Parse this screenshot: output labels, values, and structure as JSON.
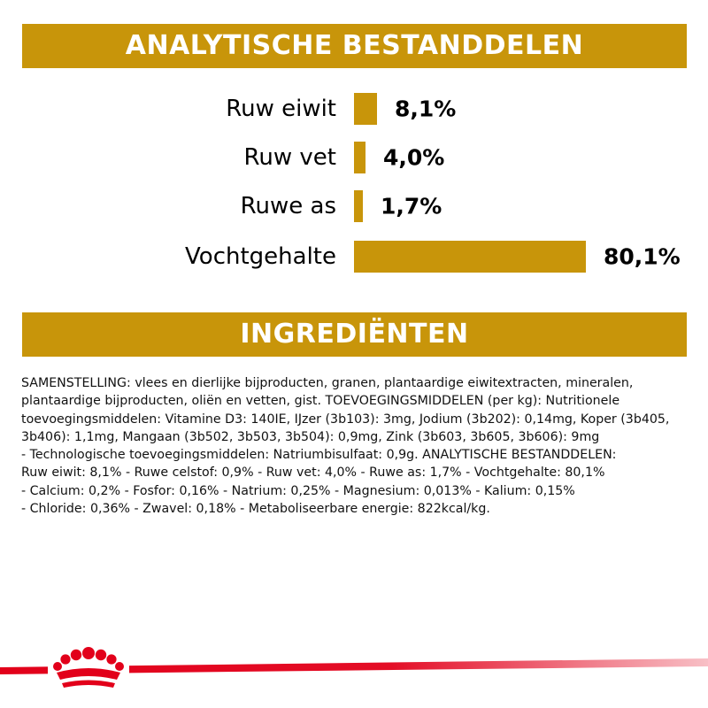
{
  "sections": {
    "analysis_title": "ANALYTISCHE BESTANDDELEN",
    "ingredients_title": "INGREDIËNTEN"
  },
  "chart_data": {
    "type": "bar",
    "orientation": "horizontal",
    "title": "ANALYTISCHE BESTANDDELEN",
    "categories": [
      "Ruw eiwit",
      "Ruw vet",
      "Ruwe as",
      "Vochtgehalte"
    ],
    "values": [
      8.1,
      4.0,
      1.7,
      80.1
    ],
    "value_labels": [
      "8,1%",
      "4,0%",
      "1,7%",
      "80,1%"
    ],
    "unit": "%",
    "xlim": [
      0,
      80.1
    ],
    "grid": false,
    "bar_color": "#c8950a"
  },
  "ingredients": {
    "lines": [
      "SAMENSTELLING: vlees en dierlijke bijproducten, granen, plantaardige eiwitextracten, mineralen,",
      "plantaardige bijproducten, oliën en vetten, gist. TOEVOEGINGSMIDDELEN (per kg): Nutritionele",
      "toevoegingsmiddelen: Vitamine D3: 140IE, IJzer (3b103): 3mg, Jodium (3b202): 0,14mg, Koper (3b405,",
      "3b406): 1,1mg, Mangaan (3b502, 3b503, 3b504): 0,9mg, Zink (3b603, 3b605, 3b606): 9mg",
      "- Technologische toevoegingsmiddelen: Natriumbisulfaat: 0,9g. ANALYTISCHE BESTANDDELEN:",
      "Ruw eiwit: 8,1% - Ruwe celstof: 0,9% - Ruw vet: 4,0% - Ruwe as: 1,7% - Vochtgehalte: 80,1%",
      "- Calcium: 0,2% - Fosfor: 0,16% - Natrium: 0,25% - Magnesium: 0,013% - Kalium: 0,15%",
      "- Chloride: 0,36% - Zwavel: 0,18% - Metaboliseerbare energie: 822kcal/kg."
    ]
  },
  "footer": {
    "logo_icon": "royal-canin-crown-icon",
    "stripe_color": "#e2001a"
  },
  "colors": {
    "accent": "#c8950a",
    "brand_red": "#e2001a"
  }
}
